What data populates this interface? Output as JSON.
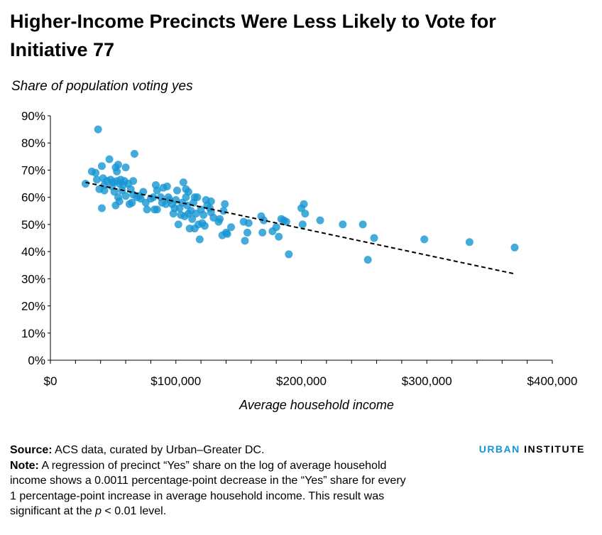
{
  "chart_data": {
    "type": "scatter",
    "title": "Higher-Income Precincts Were Less Likely to Vote for Initiative 77",
    "ylabel": "Share of population voting yes",
    "xlabel": "Average household income",
    "xlim": [
      0,
      400000
    ],
    "ylim": [
      0,
      0.9
    ],
    "x_ticks": [
      0,
      100000,
      200000,
      300000,
      400000
    ],
    "x_tick_labels": [
      "$0",
      "$100,000",
      "$200,000",
      "$300,000",
      "$400,000"
    ],
    "y_ticks": [
      0,
      0.1,
      0.2,
      0.3,
      0.4,
      0.5,
      0.6,
      0.7,
      0.8,
      0.9
    ],
    "y_tick_labels": [
      "0%",
      "10%",
      "20%",
      "30%",
      "40%",
      "50%",
      "60%",
      "70%",
      "80%",
      "90%"
    ],
    "grid": false,
    "color": "#1696d2",
    "trendline": {
      "x": [
        28000,
        370000
      ],
      "y": [
        0.655,
        0.318
      ],
      "style": "dashed",
      "color": "#000000"
    },
    "points": [
      [
        28000,
        0.65
      ],
      [
        33000,
        0.695
      ],
      [
        36000,
        0.69
      ],
      [
        37000,
        0.665
      ],
      [
        38000,
        0.85
      ],
      [
        39000,
        0.63
      ],
      [
        41000,
        0.715
      ],
      [
        41000,
        0.56
      ],
      [
        42000,
        0.67
      ],
      [
        43000,
        0.645
      ],
      [
        43000,
        0.625
      ],
      [
        45000,
        0.66
      ],
      [
        47000,
        0.74
      ],
      [
        48000,
        0.665
      ],
      [
        49000,
        0.64
      ],
      [
        50000,
        0.655
      ],
      [
        51000,
        0.62
      ],
      [
        52000,
        0.71
      ],
      [
        52000,
        0.57
      ],
      [
        53000,
        0.695
      ],
      [
        53000,
        0.66
      ],
      [
        54000,
        0.72
      ],
      [
        54000,
        0.6
      ],
      [
        55000,
        0.65
      ],
      [
        55000,
        0.585
      ],
      [
        56000,
        0.665
      ],
      [
        57000,
        0.625
      ],
      [
        58000,
        0.645
      ],
      [
        59000,
        0.66
      ],
      [
        60000,
        0.71
      ],
      [
        60000,
        0.605
      ],
      [
        62000,
        0.65
      ],
      [
        63000,
        0.575
      ],
      [
        64000,
        0.63
      ],
      [
        65000,
        0.58
      ],
      [
        66000,
        0.66
      ],
      [
        66000,
        0.61
      ],
      [
        67000,
        0.76
      ],
      [
        69000,
        0.6
      ],
      [
        71000,
        0.605
      ],
      [
        72000,
        0.595
      ],
      [
        74000,
        0.62
      ],
      [
        76000,
        0.58
      ],
      [
        77000,
        0.555
      ],
      [
        80000,
        0.595
      ],
      [
        82000,
        0.6
      ],
      [
        83000,
        0.555
      ],
      [
        84000,
        0.645
      ],
      [
        85000,
        0.625
      ],
      [
        85000,
        0.555
      ],
      [
        88000,
        0.6
      ],
      [
        89000,
        0.58
      ],
      [
        90000,
        0.635
      ],
      [
        92000,
        0.575
      ],
      [
        93000,
        0.64
      ],
      [
        94000,
        0.6
      ],
      [
        95000,
        0.59
      ],
      [
        97000,
        0.575
      ],
      [
        98000,
        0.54
      ],
      [
        99000,
        0.56
      ],
      [
        100000,
        0.59
      ],
      [
        101000,
        0.625
      ],
      [
        102000,
        0.5
      ],
      [
        103000,
        0.56
      ],
      [
        104000,
        0.535
      ],
      [
        105000,
        0.58
      ],
      [
        106000,
        0.655
      ],
      [
        107000,
        0.53
      ],
      [
        108000,
        0.6
      ],
      [
        108000,
        0.63
      ],
      [
        109000,
        0.57
      ],
      [
        110000,
        0.62
      ],
      [
        110000,
        0.54
      ],
      [
        111000,
        0.485
      ],
      [
        112000,
        0.55
      ],
      [
        113000,
        0.52
      ],
      [
        114000,
        0.58
      ],
      [
        115000,
        0.6
      ],
      [
        115000,
        0.485
      ],
      [
        116000,
        0.54
      ],
      [
        117000,
        0.6
      ],
      [
        118000,
        0.5
      ],
      [
        119000,
        0.445
      ],
      [
        120000,
        0.555
      ],
      [
        121000,
        0.505
      ],
      [
        122000,
        0.535
      ],
      [
        123000,
        0.495
      ],
      [
        124000,
        0.59
      ],
      [
        125000,
        0.57
      ],
      [
        127000,
        0.56
      ],
      [
        128000,
        0.585
      ],
      [
        128000,
        0.545
      ],
      [
        130000,
        0.525
      ],
      [
        134000,
        0.51
      ],
      [
        135000,
        0.52
      ],
      [
        137000,
        0.46
      ],
      [
        138000,
        0.55
      ],
      [
        139000,
        0.575
      ],
      [
        140000,
        0.47
      ],
      [
        141000,
        0.465
      ],
      [
        144000,
        0.49
      ],
      [
        154000,
        0.51
      ],
      [
        155000,
        0.44
      ],
      [
        157000,
        0.47
      ],
      [
        158000,
        0.505
      ],
      [
        168000,
        0.53
      ],
      [
        169000,
        0.47
      ],
      [
        170000,
        0.515
      ],
      [
        177000,
        0.475
      ],
      [
        180000,
        0.49
      ],
      [
        182000,
        0.455
      ],
      [
        184000,
        0.52
      ],
      [
        186000,
        0.515
      ],
      [
        188000,
        0.51
      ],
      [
        190000,
        0.39
      ],
      [
        200000,
        0.56
      ],
      [
        201000,
        0.5
      ],
      [
        202000,
        0.575
      ],
      [
        203000,
        0.54
      ],
      [
        215000,
        0.515
      ],
      [
        233000,
        0.5
      ],
      [
        249000,
        0.5
      ],
      [
        253000,
        0.37
      ],
      [
        258000,
        0.45
      ],
      [
        298000,
        0.445
      ],
      [
        334000,
        0.435
      ],
      [
        370000,
        0.415
      ]
    ]
  },
  "footer": {
    "source_label": "Source:",
    "source_text": " ACS data, curated by Urban–Greater DC.",
    "note_label": "Note:",
    "note_text_1": " A regression of precinct “Yes” share on the log of average household income shows a 0.0011 percentage-point decrease in the “Yes” share for every 1 percentage-point increase in average household income. This result was significant at the ",
    "note_p": "p",
    "note_text_2": " < 0.01 level."
  },
  "brand": {
    "urban": "URBAN",
    "institute": "INSTITUTE"
  }
}
